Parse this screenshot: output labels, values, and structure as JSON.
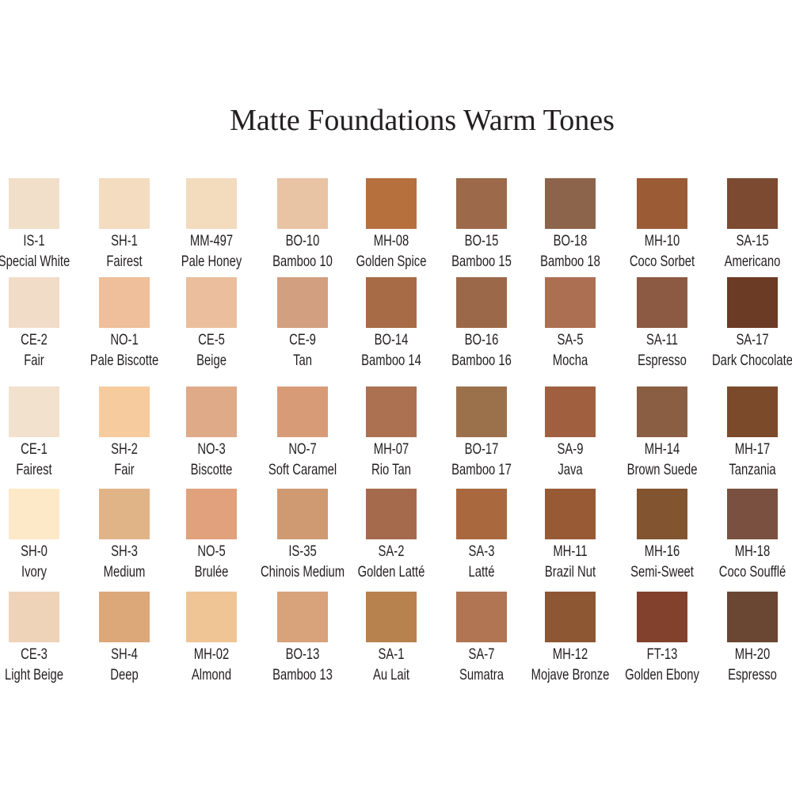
{
  "header": {
    "title": "Matte Foundations Warm Tones"
  },
  "rows": [
    [
      {
        "code": "IS-1",
        "name": "Special White",
        "color": "#f1dfc9"
      },
      {
        "code": "SH-1",
        "name": "Fairest",
        "color": "#f4dcc0"
      },
      {
        "code": "MM-497",
        "name": "Pale Honey",
        "color": "#f3dbbd"
      },
      {
        "code": "BO-10",
        "name": "Bamboo 10",
        "color": "#e8c3a4"
      },
      {
        "code": "MH-08",
        "name": "Golden Spice",
        "color": "#b5703d"
      },
      {
        "code": "BO-15",
        "name": "Bamboo 15",
        "color": "#9c6a4a"
      },
      {
        "code": "BO-18",
        "name": "Bamboo 18",
        "color": "#8c644b"
      },
      {
        "code": "MH-10",
        "name": "Coco Sorbet",
        "color": "#9a5b35"
      },
      {
        "code": "SA-15",
        "name": "Americano",
        "color": "#7b4a31"
      }
    ],
    [
      {
        "code": "CE-2",
        "name": "Fair",
        "color": "#f1dcc8"
      },
      {
        "code": "NO-1",
        "name": "Pale Biscotte",
        "color": "#eebf9a"
      },
      {
        "code": "CE-5",
        "name": "Beige",
        "color": "#ebbf9d"
      },
      {
        "code": "CE-9",
        "name": "Tan",
        "color": "#d29f80"
      },
      {
        "code": "BO-14",
        "name": "Bamboo 14",
        "color": "#a76b45"
      },
      {
        "code": "BO-16",
        "name": "Bamboo 16",
        "color": "#9b6849"
      },
      {
        "code": "SA-5",
        "name": "Mocha",
        "color": "#ad6f52"
      },
      {
        "code": "SA-11",
        "name": "Espresso",
        "color": "#8c5a42"
      },
      {
        "code": "SA-17",
        "name": "Dark Chocolate",
        "color": "#6c3b25"
      }
    ],
    [
      {
        "code": "CE-1",
        "name": "Fairest",
        "color": "#f2e1cd"
      },
      {
        "code": "SH-2",
        "name": "Fair",
        "color": "#f6cc9e"
      },
      {
        "code": "NO-3",
        "name": "Biscotte",
        "color": "#deaa88"
      },
      {
        "code": "NO-7",
        "name": "Soft Caramel",
        "color": "#d79c77"
      },
      {
        "code": "MH-07",
        "name": "Rio Tan",
        "color": "#ab7150"
      },
      {
        "code": "BO-17",
        "name": "Bamboo 17",
        "color": "#9b714c"
      },
      {
        "code": "SA-9",
        "name": "Java",
        "color": "#a0603f"
      },
      {
        "code": "MH-14",
        "name": "Brown Suede",
        "color": "#8a5e43"
      },
      {
        "code": "MH-17",
        "name": "Tanzania",
        "color": "#7b4a2b"
      }
    ],
    [
      {
        "code": "SH-0",
        "name": "Ivory",
        "color": "#fde8c8"
      },
      {
        "code": "SH-3",
        "name": "Medium",
        "color": "#e1b488"
      },
      {
        "code": "NO-5",
        "name": "Brulée",
        "color": "#e0a17c"
      },
      {
        "code": "IS-35",
        "name": "Chinois Medium",
        "color": "#cf9a72"
      },
      {
        "code": "SA-2",
        "name": "Golden Latté",
        "color": "#a56a4c"
      },
      {
        "code": "SA-3",
        "name": "Latté",
        "color": "#a9683d"
      },
      {
        "code": "MH-11",
        "name": "Brazil Nut",
        "color": "#985a35"
      },
      {
        "code": "MH-16",
        "name": "Semi-Sweet",
        "color": "#825430"
      },
      {
        "code": "MH-18",
        "name": "Coco Soufflé",
        "color": "#7a5140"
      }
    ],
    [
      {
        "code": "CE-3",
        "name": "Light Beige",
        "color": "#efd3b8"
      },
      {
        "code": "SH-4",
        "name": "Deep",
        "color": "#dca87a"
      },
      {
        "code": "MH-02",
        "name": "Almond",
        "color": "#efc595"
      },
      {
        "code": "BO-13",
        "name": "Bamboo 13",
        "color": "#d8a27a"
      },
      {
        "code": "SA-1",
        "name": "Au Lait",
        "color": "#b8824f"
      },
      {
        "code": "SA-7",
        "name": "Sumatra",
        "color": "#b17553"
      },
      {
        "code": "MH-12",
        "name": "Mojave Bronze",
        "color": "#8e5733"
      },
      {
        "code": "FT-13",
        "name": "Golden Ebony",
        "color": "#82412d"
      },
      {
        "code": "MH-20",
        "name": "Espresso",
        "color": "#6a4733"
      }
    ]
  ]
}
